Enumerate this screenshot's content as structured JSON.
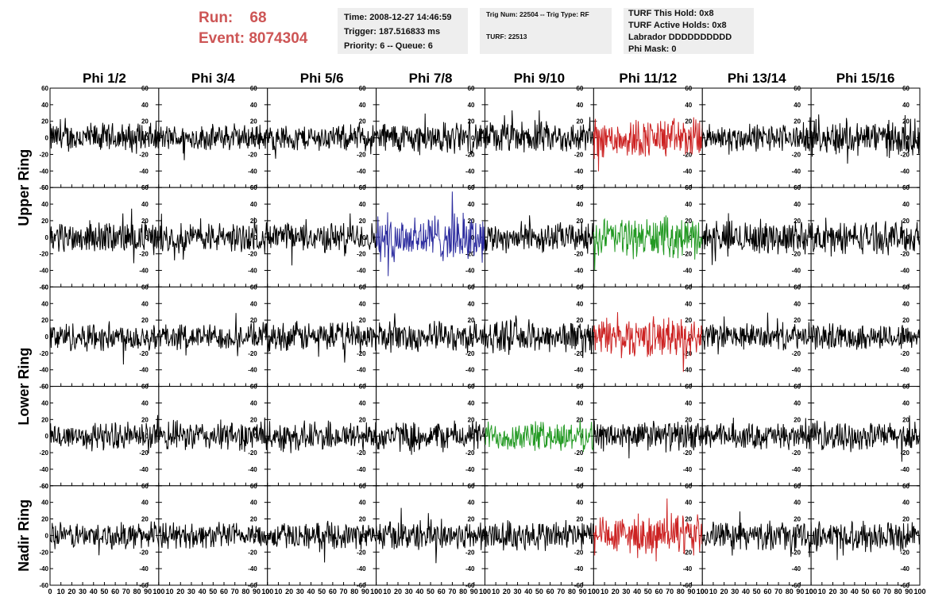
{
  "header": {
    "run_label": "Run:",
    "run_value": "68",
    "event_label": "Event:",
    "event_value": "8074304",
    "time": "Time: 2008-12-27 14:46:59",
    "trigger": "Trigger: 187.516833 ms",
    "priority": "Priority: 6 -- Queue: 6",
    "trig_num": "Trig Num: 22504 -- Trig Type: RF",
    "turf": "TURF: 22513",
    "turf_this_hold": "TURF This Hold: 0x8",
    "turf_active_holds": "TURF Active Holds: 0x8",
    "labrador": "Labrador DDDDDDDDDD",
    "phi_mask": "Phi Mask: 0"
  },
  "chart_data": {
    "type": "line",
    "columns": [
      "Phi 1/2",
      "Phi 3/4",
      "Phi 5/6",
      "Phi 7/8",
      "Phi 9/10",
      "Phi 11/12",
      "Phi 13/14",
      "Phi 15/16"
    ],
    "row_groups": [
      {
        "label": "Upper Ring",
        "rows": [
          0,
          1
        ]
      },
      {
        "label": "Lower Ring",
        "rows": [
          2,
          3
        ]
      },
      {
        "label": "Nadir Ring",
        "rows": [
          4
        ]
      }
    ],
    "ylim": [
      -60,
      60
    ],
    "xlim": [
      0,
      100
    ],
    "y_ticks": [
      -60,
      -40,
      -20,
      0,
      20,
      40,
      60
    ],
    "x_ticks": [
      0,
      10,
      20,
      30,
      40,
      50,
      60,
      70,
      80,
      90,
      100
    ],
    "colors": {
      "normal": "#000000",
      "red": "#cc2222",
      "blue": "#2b2b9e",
      "green": "#229922"
    },
    "panel_colors": [
      [
        "normal",
        "normal",
        "normal",
        "normal",
        "normal",
        "red",
        "normal",
        "normal"
      ],
      [
        "normal",
        "normal",
        "normal",
        "blue",
        "normal",
        "green",
        "normal",
        "normal"
      ],
      [
        "normal",
        "normal",
        "normal",
        "normal",
        "normal",
        "red",
        "normal",
        "normal"
      ],
      [
        "normal",
        "normal",
        "normal",
        "normal",
        "green",
        "normal",
        "normal",
        "normal"
      ],
      [
        "normal",
        "normal",
        "normal",
        "normal",
        "normal",
        "red",
        "normal",
        "normal"
      ]
    ],
    "panel_amplitudes": [
      [
        15,
        13,
        13,
        16,
        16,
        20,
        14,
        18
      ],
      [
        16,
        15,
        15,
        24,
        15,
        20,
        17,
        16
      ],
      [
        15,
        13,
        15,
        15,
        16,
        20,
        13,
        13
      ],
      [
        14,
        15,
        15,
        15,
        15,
        15,
        13,
        14
      ],
      [
        13,
        13,
        13,
        15,
        16,
        20,
        14,
        15
      ]
    ]
  }
}
